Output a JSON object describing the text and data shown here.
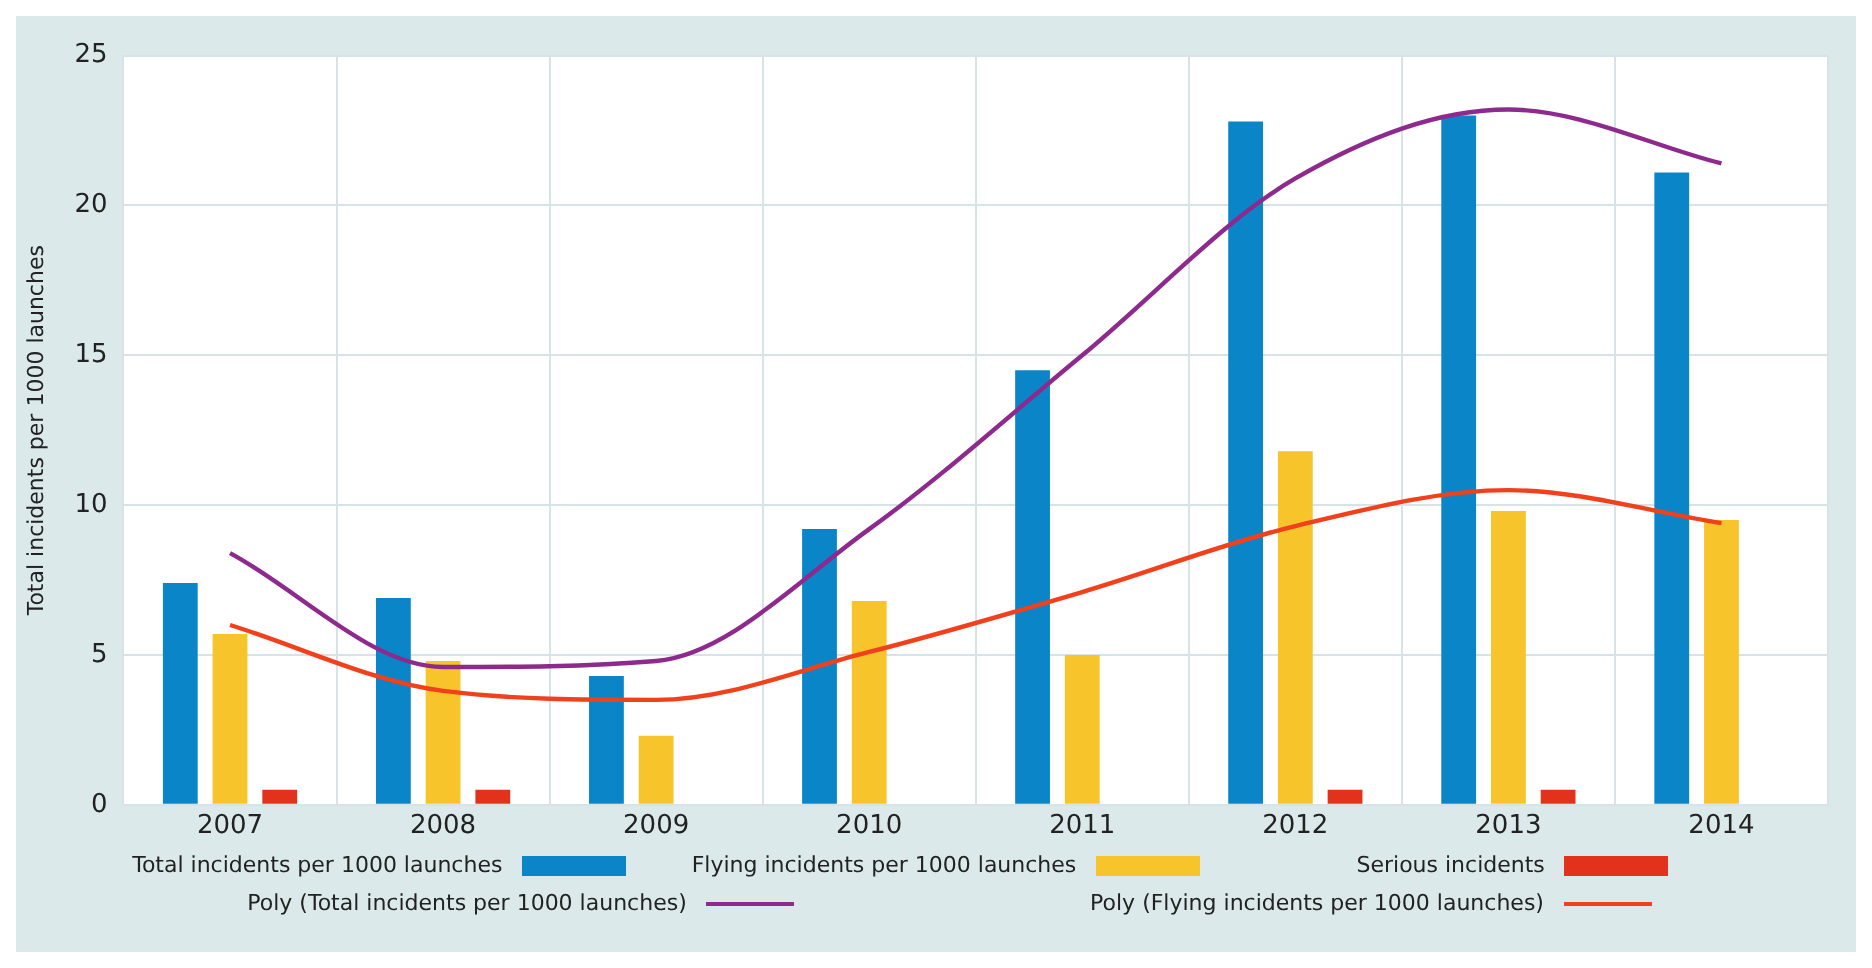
{
  "chart_data": {
    "type": "bar",
    "ylabel": "Total incidents per 1000 launches",
    "categories": [
      "2007",
      "2008",
      "2009",
      "2010",
      "2011",
      "2012",
      "2013",
      "2014"
    ],
    "series": [
      {
        "name": "Total incidents per 1000 launches",
        "color": "#0a86c8",
        "values": [
          7.4,
          6.9,
          4.3,
          9.2,
          14.5,
          22.8,
          23.0,
          21.1
        ]
      },
      {
        "name": "Flying incidents per 1000 launches",
        "color": "#f7c42b",
        "values": [
          5.7,
          4.8,
          2.3,
          6.8,
          5.0,
          11.8,
          9.8,
          9.5
        ]
      },
      {
        "name": "Serious incidents",
        "color": "#e2321c",
        "values": [
          0.5,
          0.5,
          null,
          null,
          null,
          0.5,
          0.5,
          null
        ]
      },
      {
        "name": "Poly (Total incidents per 1000 launches)",
        "type": "line",
        "color": "#8e2a8e",
        "values": [
          8.4,
          4.6,
          4.8,
          9.2,
          15.0,
          20.9,
          23.2,
          21.4
        ]
      },
      {
        "name": "Poly (Flying incidents per 1000 launches)",
        "type": "line",
        "color": "#f0401c",
        "values": [
          6.0,
          3.8,
          3.5,
          5.1,
          7.1,
          9.3,
          10.5,
          9.4
        ]
      }
    ],
    "ylim": [
      0,
      25
    ],
    "yticks": [
      0,
      5,
      10,
      15,
      20,
      25
    ],
    "grid": true,
    "legend": "bottom",
    "marker": "none",
    "line_style": "solid"
  }
}
